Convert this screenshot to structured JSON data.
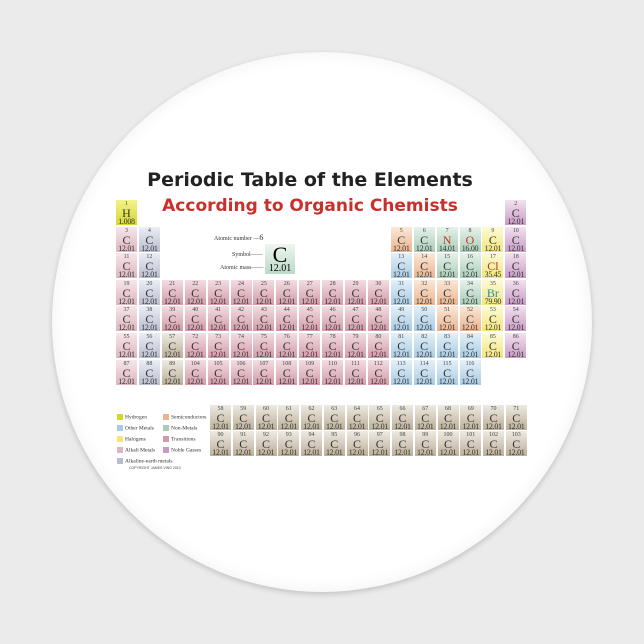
{
  "title": "Periodic Table of the Elements",
  "subtitle": "According to Organic Chemists",
  "default_symbol": "C",
  "default_mass": "12.01",
  "overrides": {
    "1": {
      "symbol": "H",
      "mass": "1.008"
    },
    "7": {
      "symbol": "N",
      "mass": "14.01"
    },
    "8": {
      "symbol": "O",
      "mass": "16.00"
    },
    "17": {
      "symbol": "Cl",
      "mass": "35.45"
    },
    "35": {
      "symbol": "Br",
      "mass": "79.90"
    }
  },
  "categories": {
    "hydrogen": [
      1
    ],
    "alkali": [
      3,
      11,
      19,
      37,
      55,
      87
    ],
    "alkaline-earth": [
      4,
      12,
      20,
      38,
      56,
      88
    ],
    "transition": [
      21,
      22,
      23,
      24,
      25,
      26,
      27,
      28,
      29,
      30,
      39,
      40,
      41,
      42,
      43,
      44,
      45,
      46,
      47,
      48,
      72,
      73,
      74,
      75,
      76,
      77,
      78,
      79,
      80,
      104,
      105,
      106,
      107,
      108,
      109,
      110,
      111,
      112
    ],
    "inner-transition": [
      57,
      58,
      59,
      60,
      61,
      62,
      63,
      64,
      65,
      66,
      67,
      68,
      69,
      70,
      71,
      89,
      90,
      91,
      92,
      93,
      94,
      95,
      96,
      97,
      98,
      99,
      100,
      101,
      102,
      103
    ],
    "semiconductor": [
      5,
      14,
      32,
      33,
      51,
      52
    ],
    "non-metal": [
      6,
      7,
      8,
      15,
      16,
      34
    ],
    "halogen": [
      9,
      17,
      35,
      53,
      85
    ],
    "noble-gas": [
      2,
      10,
      18,
      36,
      54,
      86
    ],
    "other-metal": [
      13,
      31,
      49,
      50,
      81,
      82,
      83,
      84,
      113,
      114,
      115,
      116
    ]
  },
  "colors": {
    "hydrogen": [
      "#f4f48a",
      "#d6d630"
    ],
    "alkali": [
      "#f6e6ea",
      "#dcb6be"
    ],
    "alkaline-earth": [
      "#eceef4",
      "#b9bdd0"
    ],
    "transition": [
      "#f3dde2",
      "#d39aa8"
    ],
    "inner-transition": [
      "#eeeae2",
      "#bcae98"
    ],
    "semiconductor": [
      "#fbe8d8",
      "#eab48e"
    ],
    "non-metal": [
      "#e6f2ea",
      "#a9cdb8"
    ],
    "halogen": [
      "#fdfbd8",
      "#f2e67a"
    ],
    "noble-gas": [
      "#f2e2f0",
      "#c99bc4"
    ],
    "other-metal": [
      "#e4f0f8",
      "#a8cbe4"
    ]
  },
  "key": {
    "atomic_number_label": "Atomic number",
    "atomic_number": "6",
    "symbol_label": "Symbol",
    "symbol": "C",
    "mass_label": "Atomic mass",
    "mass": "12.01"
  },
  "legend": [
    {
      "label": "Hydrogen",
      "category": "hydrogen"
    },
    {
      "label": "Semiconductors",
      "category": "semiconductor"
    },
    {
      "label": "Other Metals",
      "category": "other-metal"
    },
    {
      "label": "Non-Metals",
      "category": "non-metal"
    },
    {
      "label": "Halogens",
      "category": "halogen"
    },
    {
      "label": "Transitions",
      "category": "transition"
    },
    {
      "label": "Alkali Metals",
      "category": "alkali"
    },
    {
      "label": "Noble Gasses",
      "category": "noble-gas"
    },
    {
      "label": "Alkaline-earth metals",
      "category": "alkaline-earth"
    }
  ],
  "copyright": "COPYRIGHT JAMES VING 2010"
}
